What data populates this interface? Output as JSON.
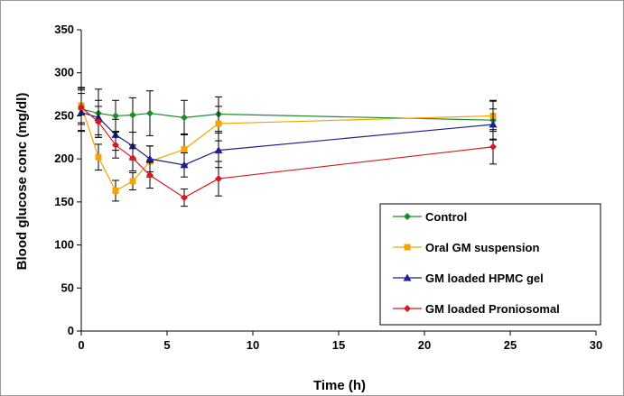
{
  "chart_data": {
    "type": "line",
    "title": "",
    "xlabel": "Time (h)",
    "ylabel": "Blood glucose conc (mg/dl)",
    "xlim": [
      0,
      30
    ],
    "ylim": [
      0,
      350
    ],
    "xticks": [
      0,
      5,
      10,
      15,
      20,
      25,
      30
    ],
    "yticks": [
      0,
      50,
      100,
      150,
      200,
      250,
      300,
      350
    ],
    "grid": false,
    "legend_position": "bottom-right",
    "series": [
      {
        "name": "Control",
        "color": "#1e8c2a",
        "marker": "diamond",
        "x": [
          0,
          1,
          2,
          3,
          4,
          6,
          8,
          24
        ],
        "y": [
          258,
          253,
          250,
          251,
          253,
          248,
          252,
          245
        ],
        "err": [
          25,
          28,
          18,
          20,
          26,
          20,
          20,
          22
        ]
      },
      {
        "name": "Oral GM suspension",
        "color": "#f5a300",
        "marker": "square",
        "x": [
          0,
          1,
          2,
          3,
          4,
          6,
          8,
          24
        ],
        "y": [
          262,
          202,
          163,
          174,
          197,
          211,
          241,
          250
        ],
        "err": [
          20,
          15,
          12,
          10,
          18,
          18,
          20,
          18
        ]
      },
      {
        "name": "GM loaded HPMC gel",
        "color": "#1f1f8f",
        "marker": "triangle",
        "x": [
          0,
          1,
          2,
          3,
          4,
          6,
          8,
          24
        ],
        "y": [
          254,
          248,
          228,
          215,
          200,
          193,
          210,
          240
        ],
        "err": [
          22,
          20,
          18,
          16,
          15,
          14,
          20,
          18
        ]
      },
      {
        "name": "GM loaded Proniosomal",
        "color": "#d81820",
        "marker": "diamond",
        "x": [
          0,
          1,
          2,
          3,
          4,
          6,
          8,
          24
        ],
        "y": [
          260,
          243,
          216,
          201,
          181,
          155,
          177,
          214
        ],
        "err": [
          20,
          18,
          15,
          15,
          15,
          10,
          20,
          20
        ]
      }
    ]
  }
}
